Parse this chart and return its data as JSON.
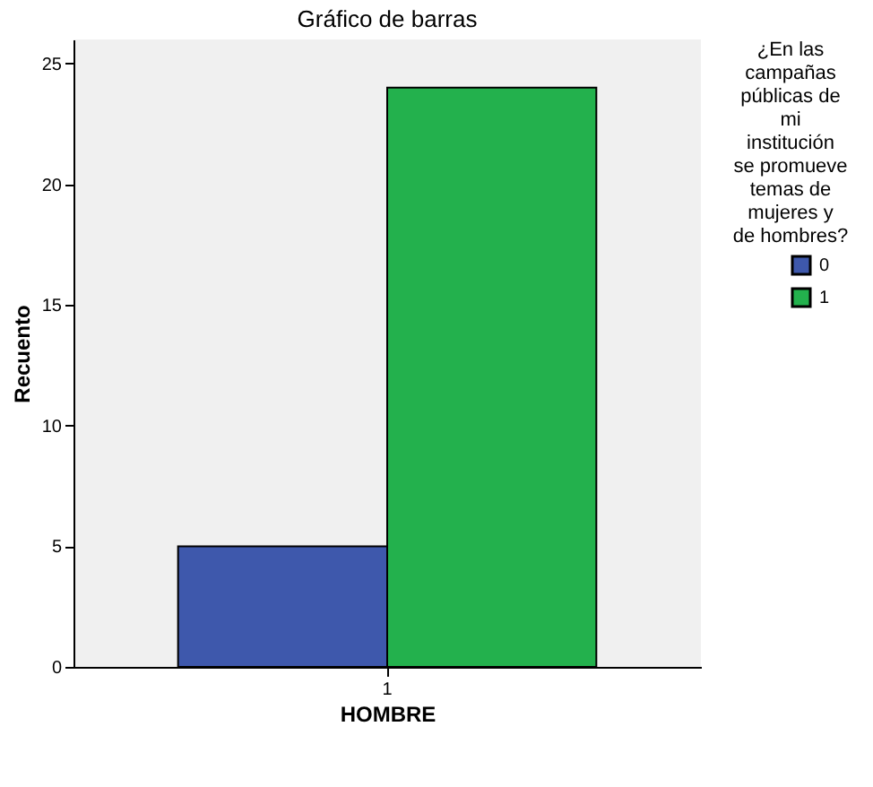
{
  "chart_data": {
    "type": "bar",
    "title": "Gráfico de barras",
    "xlabel": "HOMBRE",
    "ylabel": "Recuento",
    "legend_title": "¿En las campañas públicas de mi institución se promueve temas de mujeres y de hombres?",
    "categories": [
      "1"
    ],
    "series": [
      {
        "name": "0",
        "color": "#3e58ac",
        "values": [
          5
        ]
      },
      {
        "name": "1",
        "color": "#23b14d",
        "values": [
          24
        ]
      }
    ],
    "ylim": [
      0,
      26
    ],
    "yticks": [
      0,
      5,
      10,
      15,
      20,
      25
    ],
    "grid": false,
    "legend": "right"
  }
}
